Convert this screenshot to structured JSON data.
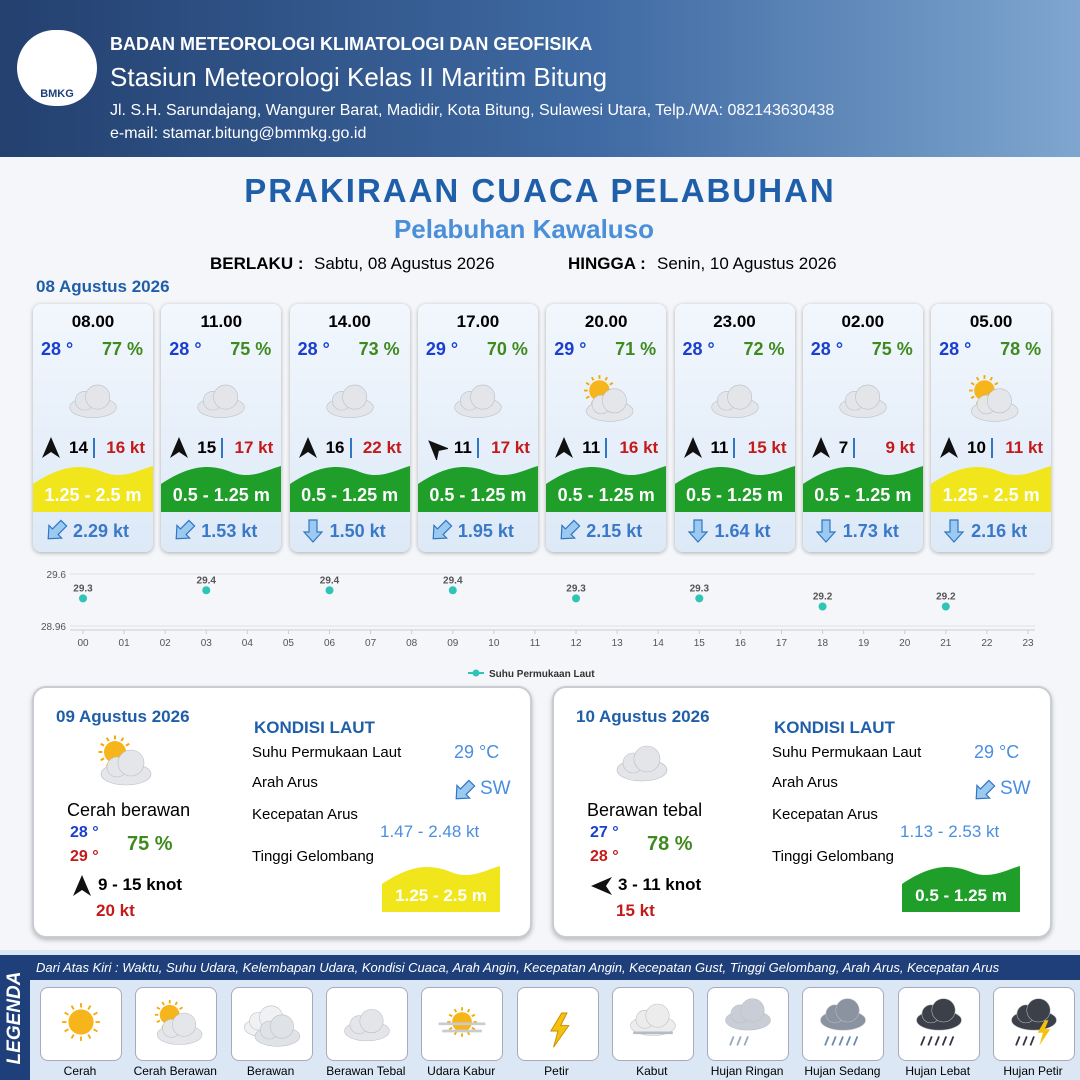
{
  "header": {
    "logo": "BMKG",
    "org": "BADAN METEOROLOGI KLIMATOLOGI DAN GEOFISIKA",
    "station": "Stasiun Meteorologi Kelas II Maritim Bitung",
    "address": "Jl. S.H. Sarundajang, Wangurer Barat, Madidir, Kota Bitung, Sulawesi Utara, Telp./WA: 082143630438",
    "email": "e-mail: stamar.bitung@bmmkg.go.id"
  },
  "title": "PRAKIRAAN CUACA PELABUHAN",
  "subtitle": "Pelabuhan Kawaluso",
  "validity": {
    "from_label": "BERLAKU :",
    "from": "Sabtu, 08 Agustus 2026",
    "to_label": "HINGGA :",
    "to": "Senin, 10 Agustus 2026"
  },
  "day1": "08 Agustus 2026",
  "cards": [
    {
      "time": "08.00",
      "temp": "28 °",
      "humidity": "77 %",
      "wind": "14",
      "gust": "16 kt",
      "wave": "1.25 - 2.5 m",
      "wave_color": "#f1e51c",
      "current": "2.29 kt"
    },
    {
      "time": "11.00",
      "temp": "28 °",
      "humidity": "75 %",
      "wind": "15",
      "gust": "17 kt",
      "wave": "0.5 - 1.25 m",
      "wave_color": "#1f9e2a",
      "current": "1.53 kt"
    },
    {
      "time": "14.00",
      "temp": "28 °",
      "humidity": "73 %",
      "wind": "16",
      "gust": "22 kt",
      "wave": "0.5 - 1.25 m",
      "wave_color": "#1f9e2a",
      "current": "1.50 kt"
    },
    {
      "time": "17.00",
      "temp": "29 °",
      "humidity": "70 %",
      "wind": "11",
      "gust": "17 kt",
      "wave": "0.5 - 1.25 m",
      "wave_color": "#1f9e2a",
      "current": "1.95 kt"
    },
    {
      "time": "20.00",
      "temp": "29 °",
      "humidity": "71 %",
      "wind": "11",
      "gust": "16 kt",
      "wave": "0.5 - 1.25 m",
      "wave_color": "#1f9e2a",
      "current": "2.15 kt"
    },
    {
      "time": "23.00",
      "temp": "28 °",
      "humidity": "72 %",
      "wind": "11",
      "gust": "15 kt",
      "wave": "0.5 - 1.25 m",
      "wave_color": "#1f9e2a",
      "current": "1.64 kt"
    },
    {
      "time": "02.00",
      "temp": "28 °",
      "humidity": "75 %",
      "wind": "7",
      "gust": "9 kt",
      "wave": "0.5 - 1.25 m",
      "wave_color": "#1f9e2a",
      "current": "1.73 kt"
    },
    {
      "time": "05.00",
      "temp": "28 °",
      "humidity": "78 %",
      "wind": "10",
      "gust": "11 kt",
      "wave": "1.25 - 2.5 m",
      "wave_color": "#f1e51c",
      "current": "2.16 kt"
    }
  ],
  "chart_data": {
    "type": "scatter",
    "x": [
      0,
      3,
      6,
      9,
      12,
      15,
      18,
      21
    ],
    "series": [
      {
        "name": "Suhu Permukaan Laut",
        "color": "#2ec4b6",
        "values": [
          29.3,
          29.4,
          29.4,
          29.4,
          29.3,
          29.3,
          29.2,
          29.2
        ]
      }
    ],
    "xlim": [
      0,
      23
    ],
    "xticks": [
      {
        "value": 0,
        "label": "00"
      },
      {
        "value": 1,
        "label": "01"
      },
      {
        "value": 2,
        "label": "02"
      },
      {
        "value": 3,
        "label": "03"
      },
      {
        "value": 4,
        "label": "04"
      },
      {
        "value": 5,
        "label": "05"
      },
      {
        "value": 6,
        "label": "06"
      },
      {
        "value": 7,
        "label": "07"
      },
      {
        "value": 8,
        "label": "08"
      },
      {
        "value": 9,
        "label": "09"
      },
      10,
      11,
      12,
      13,
      14,
      15,
      16,
      17,
      18,
      19,
      20,
      21,
      22,
      23
    ],
    "ylim": [
      28.96,
      29.6
    ],
    "yticks": [
      28.96,
      29.6
    ],
    "legend": "bottom"
  },
  "panels": [
    {
      "date": "09 Agustus 2026",
      "condition": "Cerah berawan",
      "temp_min": "28 °",
      "temp_max": "29 °",
      "humidity": "75 %",
      "wind": "9  - 15 knot",
      "gust": "20 kt",
      "sea_title": "KONDISI LAUT",
      "sst_label": "Suhu Permukaan Laut",
      "sst": "29 °C",
      "dir_label": "Arah Arus",
      "dir": "SW",
      "speed_label": "Kecepatan Arus",
      "speed": "1.47 - 2.48 kt",
      "wave_label": "Tinggi Gelombang",
      "wave": "1.25 - 2.5 m",
      "wave_color": "#f1e51c"
    },
    {
      "date": "10 Agustus 2026",
      "condition": "Berawan tebal",
      "temp_min": "27 °",
      "temp_max": "28 °",
      "humidity": "78 %",
      "wind": "3  - 11 knot",
      "gust": "15 kt",
      "sea_title": "KONDISI LAUT",
      "sst_label": "Suhu Permukaan Laut",
      "sst": "29 °C",
      "dir_label": "Arah Arus",
      "dir": "SW",
      "speed_label": "Kecepatan Arus",
      "speed": "1.13 - 2.53 kt",
      "wave_label": "Tinggi Gelombang",
      "wave": "0.5 - 1.25 m",
      "wave_color": "#1f9e2a"
    }
  ],
  "legend": {
    "title": "LEGENDA",
    "description": "Dari Atas Kiri : Waktu, Suhu Udara, Kelembapan Udara, Kondisi Cuaca, Arah Angin, Kecepatan Angin, Kecepatan Gust, Tinggi Gelombang, Arah Arus, Kecepatan Arus",
    "items": [
      "Cerah",
      "Cerah Berawan",
      "Berawan",
      "Berawan Tebal",
      "Udara Kabur",
      "Petir",
      "Kabut",
      "Hujan Ringan",
      "Hujan Sedang",
      "Hujan Lebat",
      "Hujan Petir"
    ]
  }
}
